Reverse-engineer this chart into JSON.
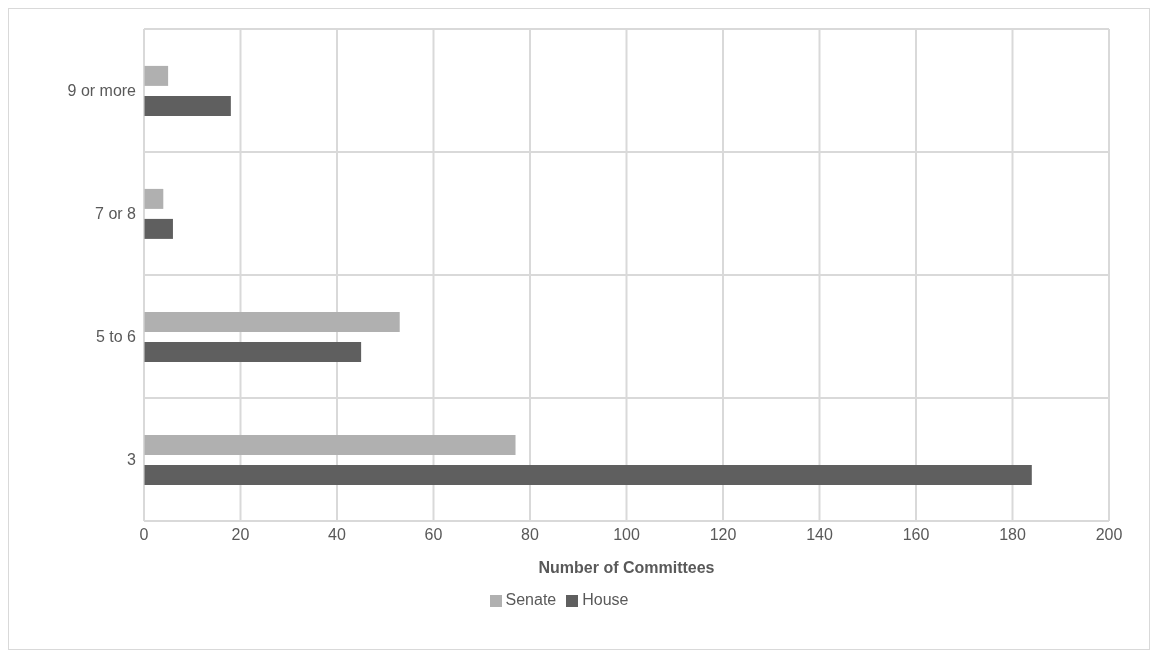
{
  "chart_data": {
    "type": "bar",
    "orientation": "horizontal",
    "xlabel": "Number of Committees",
    "categories": [
      "9 or more",
      "7 or 8",
      "5 to 6",
      "3"
    ],
    "series": [
      {
        "name": "Senate",
        "color": "#b0b0b0",
        "values": [
          5,
          4,
          53,
          77
        ]
      },
      {
        "name": "House",
        "color": "#5f5f5f",
        "values": [
          18,
          6,
          45,
          184
        ]
      }
    ],
    "xlim": [
      0,
      200
    ],
    "xticks": [
      0,
      20,
      40,
      60,
      80,
      100,
      120,
      140,
      160,
      180,
      200
    ],
    "grid": true,
    "legend": "bottom"
  }
}
